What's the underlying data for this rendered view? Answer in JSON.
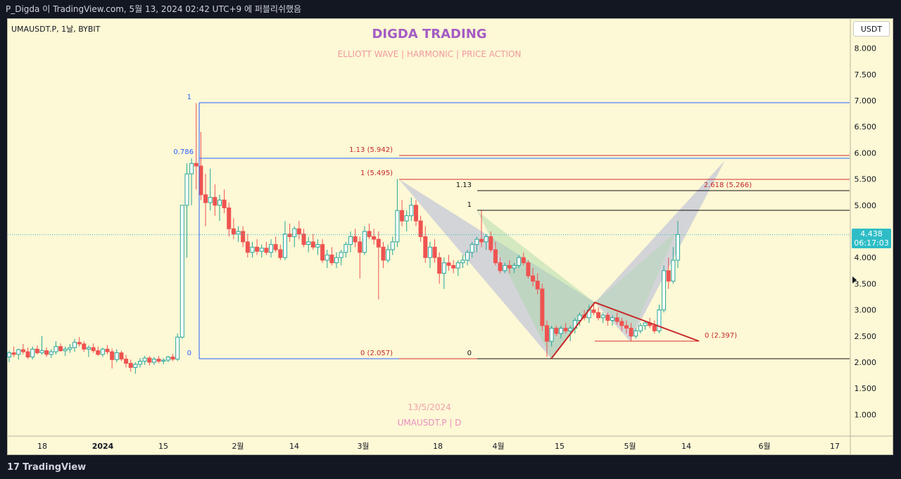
{
  "header_text": "P_Digda 이 TradingView.com, 5월 13, 2024 02:42 UTC+9 에 퍼블리쉬했음",
  "ticker": "UMAUSDT.P, 1날, BYBIT",
  "currency_button": "USDT",
  "title": "DIGDA TRADING",
  "subtitle": "ELLIOTT WAVE   |   HARMONIC   |   PRICE ACTION",
  "watermark_date": "13/5/2024",
  "watermark_symbol": "UMAUSDT.P | D",
  "current_price": "4.438",
  "countdown": "06:17:03",
  "brand": "TradingView",
  "colors": {
    "up": "#26a69a",
    "down": "#ef5350",
    "fib_blue": "#2962ff",
    "fib_red": "#d32f2f",
    "pattern_blue": "#9fa8da",
    "pattern_green": "#a5d6a7",
    "background": "#fdf8d5"
  },
  "chart_data": {
    "type": "candlestick",
    "x_tick_labels": [
      "18",
      "2024",
      "15",
      "2월",
      "14",
      "3월",
      "18",
      "4월",
      "15",
      "5월",
      "14",
      "6월",
      "17"
    ],
    "y_tick_labels": [
      "1.000",
      "1.500",
      "2.000",
      "2.500",
      "3.000",
      "3.500",
      "4.000",
      "4.500",
      "5.000",
      "5.500",
      "6.000",
      "6.500",
      "7.000",
      "7.500",
      "8.000"
    ],
    "ylim": [
      0.5,
      8.6
    ],
    "last_price": 4.438,
    "fib_levels": [
      {
        "label": "1",
        "value": 6.95,
        "color": "blue"
      },
      {
        "label": "0.786",
        "value": 5.89,
        "color": "blue"
      },
      {
        "label": "0",
        "value": 2.057,
        "color": "blue"
      },
      {
        "label": "1.13 (5.942)",
        "value": 5.942,
        "color": "red"
      },
      {
        "label": "1 (5.495)",
        "value": 5.495,
        "color": "red"
      },
      {
        "label": "0 (2.057)",
        "value": 2.057,
        "color": "red"
      },
      {
        "label": "1.13",
        "value": 5.27,
        "color": "black"
      },
      {
        "label": "1",
        "value": 4.9,
        "color": "black"
      },
      {
        "label": "0",
        "value": 2.05,
        "color": "black"
      },
      {
        "label": "2.618 (5.266)",
        "value": 5.266,
        "color": "red"
      },
      {
        "label": "0 (2.397)",
        "value": 2.397,
        "color": "red"
      }
    ],
    "candles_ohlc": [
      [
        2.1,
        2.22,
        2.0,
        2.18
      ],
      [
        2.18,
        2.3,
        2.1,
        2.15
      ],
      [
        2.15,
        2.26,
        2.05,
        2.24
      ],
      [
        2.24,
        2.35,
        2.15,
        2.2
      ],
      [
        2.2,
        2.28,
        2.06,
        2.1
      ],
      [
        2.1,
        2.3,
        2.05,
        2.25
      ],
      [
        2.25,
        2.32,
        2.15,
        2.18
      ],
      [
        2.18,
        2.5,
        2.15,
        2.22
      ],
      [
        2.22,
        2.28,
        2.1,
        2.15
      ],
      [
        2.15,
        2.25,
        2.08,
        2.2
      ],
      [
        2.2,
        2.4,
        2.15,
        2.3
      ],
      [
        2.3,
        2.36,
        2.2,
        2.22
      ],
      [
        2.22,
        2.3,
        2.12,
        2.25
      ],
      [
        2.25,
        2.35,
        2.18,
        2.28
      ],
      [
        2.28,
        2.45,
        2.2,
        2.38
      ],
      [
        2.38,
        2.48,
        2.3,
        2.35
      ],
      [
        2.35,
        2.4,
        2.2,
        2.25
      ],
      [
        2.25,
        2.32,
        2.1,
        2.28
      ],
      [
        2.28,
        2.36,
        2.18,
        2.22
      ],
      [
        2.22,
        2.3,
        2.12,
        2.15
      ],
      [
        2.15,
        2.28,
        2.1,
        2.25
      ],
      [
        2.25,
        2.33,
        2.15,
        2.2
      ],
      [
        2.2,
        2.26,
        1.88,
        2.05
      ],
      [
        2.05,
        2.25,
        2.0,
        2.18
      ],
      [
        2.18,
        2.22,
        2.02,
        2.06
      ],
      [
        2.06,
        2.14,
        1.9,
        1.98
      ],
      [
        1.98,
        2.05,
        1.82,
        1.9
      ],
      [
        1.9,
        2.0,
        1.78,
        1.96
      ],
      [
        1.96,
        2.08,
        1.9,
        2.02
      ],
      [
        2.02,
        2.12,
        1.95,
        2.08
      ],
      [
        2.08,
        2.12,
        1.94,
        2.0
      ],
      [
        2.0,
        2.1,
        1.95,
        2.06
      ],
      [
        2.06,
        2.12,
        1.98,
        2.02
      ],
      [
        2.02,
        2.08,
        1.96,
        2.04
      ],
      [
        2.04,
        2.12,
        2.0,
        2.1
      ],
      [
        2.1,
        2.16,
        2.02,
        2.06
      ],
      [
        2.06,
        2.55,
        2.02,
        2.48
      ],
      [
        2.48,
        5.0,
        2.45,
        5.0
      ],
      [
        5.0,
        5.8,
        4.0,
        5.6
      ],
      [
        5.6,
        5.9,
        5.0,
        5.8
      ],
      [
        5.8,
        6.95,
        5.3,
        5.75
      ],
      [
        5.75,
        6.4,
        5.1,
        5.2
      ],
      [
        5.2,
        5.6,
        4.6,
        5.05
      ],
      [
        5.05,
        5.7,
        4.9,
        5.15
      ],
      [
        5.15,
        5.4,
        4.8,
        5.0
      ],
      [
        5.0,
        5.2,
        4.7,
        5.1
      ],
      [
        5.1,
        5.3,
        4.85,
        4.95
      ],
      [
        4.95,
        5.05,
        4.4,
        4.55
      ],
      [
        4.55,
        4.75,
        4.35,
        4.45
      ],
      [
        4.45,
        4.6,
        4.3,
        4.5
      ],
      [
        4.5,
        4.6,
        4.2,
        4.3
      ],
      [
        4.3,
        4.45,
        4.0,
        4.1
      ],
      [
        4.1,
        4.3,
        4.0,
        4.2
      ],
      [
        4.2,
        4.35,
        4.05,
        4.12
      ],
      [
        4.12,
        4.25,
        4.0,
        4.18
      ],
      [
        4.18,
        4.3,
        4.05,
        4.1
      ],
      [
        4.1,
        4.35,
        4.0,
        4.25
      ],
      [
        4.25,
        4.4,
        4.1,
        4.15
      ],
      [
        4.15,
        4.25,
        3.95,
        4.0
      ],
      [
        4.0,
        4.7,
        3.95,
        4.45
      ],
      [
        4.45,
        4.65,
        4.3,
        4.4
      ],
      [
        4.4,
        4.6,
        4.2,
        4.55
      ],
      [
        4.55,
        4.7,
        4.35,
        4.45
      ],
      [
        4.45,
        4.55,
        4.2,
        4.25
      ],
      [
        4.25,
        4.4,
        4.1,
        4.3
      ],
      [
        4.3,
        4.45,
        4.15,
        4.2
      ],
      [
        4.2,
        4.35,
        4.05,
        4.25
      ],
      [
        4.25,
        4.35,
        3.9,
        3.95
      ],
      [
        3.95,
        4.15,
        3.8,
        4.05
      ],
      [
        4.05,
        4.2,
        3.85,
        3.9
      ],
      [
        3.9,
        4.1,
        3.8,
        4.0
      ],
      [
        4.0,
        4.15,
        3.85,
        4.1
      ],
      [
        4.1,
        4.3,
        4.0,
        4.25
      ],
      [
        4.25,
        4.5,
        4.1,
        4.4
      ],
      [
        4.4,
        4.55,
        4.2,
        4.3
      ],
      [
        4.3,
        4.4,
        3.6,
        4.1
      ],
      [
        4.1,
        4.6,
        4.05,
        4.5
      ],
      [
        4.5,
        4.65,
        4.35,
        4.4
      ],
      [
        4.4,
        4.55,
        4.25,
        4.35
      ],
      [
        4.35,
        4.5,
        3.2,
        4.2
      ],
      [
        4.2,
        4.3,
        3.8,
        3.95
      ],
      [
        3.95,
        4.25,
        3.9,
        4.15
      ],
      [
        4.15,
        4.4,
        4.05,
        4.3
      ],
      [
        4.3,
        5.5,
        4.2,
        4.9
      ],
      [
        4.9,
        5.1,
        4.6,
        4.7
      ],
      [
        4.7,
        4.9,
        4.5,
        4.8
      ],
      [
        4.8,
        5.15,
        4.7,
        5.0
      ],
      [
        5.0,
        5.1,
        4.6,
        4.7
      ],
      [
        4.7,
        4.8,
        4.3,
        4.4
      ],
      [
        4.4,
        4.6,
        3.9,
        4.0
      ],
      [
        4.0,
        4.3,
        3.8,
        4.2
      ],
      [
        4.2,
        4.35,
        3.9,
        4.0
      ],
      [
        4.0,
        4.1,
        3.5,
        3.7
      ],
      [
        3.7,
        4.0,
        3.4,
        3.9
      ],
      [
        3.9,
        4.05,
        3.75,
        3.85
      ],
      [
        3.85,
        3.95,
        3.7,
        3.8
      ],
      [
        3.8,
        3.95,
        3.65,
        3.9
      ],
      [
        3.9,
        4.05,
        3.8,
        3.95
      ],
      [
        3.95,
        4.15,
        3.85,
        4.1
      ],
      [
        4.1,
        4.3,
        4.0,
        4.25
      ],
      [
        4.25,
        4.4,
        4.1,
        4.35
      ],
      [
        4.35,
        4.9,
        4.2,
        4.3
      ],
      [
        4.3,
        4.45,
        4.15,
        4.4
      ],
      [
        4.4,
        4.5,
        4.1,
        4.15
      ],
      [
        4.15,
        4.3,
        3.85,
        3.9
      ],
      [
        3.9,
        4.0,
        3.7,
        3.75
      ],
      [
        3.75,
        3.9,
        3.7,
        3.85
      ],
      [
        3.85,
        3.95,
        3.7,
        3.8
      ],
      [
        3.8,
        3.9,
        3.7,
        3.85
      ],
      [
        3.85,
        4.05,
        3.8,
        4.0
      ],
      [
        4.0,
        4.1,
        3.85,
        3.9
      ],
      [
        3.9,
        3.95,
        3.6,
        3.65
      ],
      [
        3.65,
        3.8,
        3.45,
        3.55
      ],
      [
        3.55,
        3.7,
        3.3,
        3.4
      ],
      [
        3.4,
        3.5,
        2.6,
        2.7
      ],
      [
        2.7,
        2.8,
        2.1,
        2.4
      ],
      [
        2.4,
        2.7,
        2.3,
        2.65
      ],
      [
        2.65,
        2.7,
        2.5,
        2.55
      ],
      [
        2.55,
        2.7,
        2.45,
        2.65
      ],
      [
        2.65,
        2.75,
        2.55,
        2.6
      ],
      [
        2.6,
        2.7,
        2.4,
        2.65
      ],
      [
        2.65,
        2.85,
        2.55,
        2.8
      ],
      [
        2.8,
        2.95,
        2.7,
        2.9
      ],
      [
        2.9,
        3.0,
        2.8,
        2.85
      ],
      [
        2.85,
        3.1,
        2.75,
        3.0
      ],
      [
        3.0,
        3.1,
        2.9,
        2.95
      ],
      [
        2.95,
        3.05,
        2.8,
        2.85
      ],
      [
        2.85,
        2.95,
        2.75,
        2.9
      ],
      [
        2.9,
        2.95,
        2.7,
        2.8
      ],
      [
        2.8,
        2.9,
        2.7,
        2.85
      ],
      [
        2.85,
        2.95,
        2.72,
        2.78
      ],
      [
        2.78,
        2.85,
        2.6,
        2.7
      ],
      [
        2.7,
        2.8,
        2.55,
        2.65
      ],
      [
        2.65,
        2.75,
        2.4,
        2.5
      ],
      [
        2.5,
        2.65,
        2.45,
        2.6
      ],
      [
        2.6,
        2.75,
        2.55,
        2.7
      ],
      [
        2.7,
        2.8,
        2.62,
        2.75
      ],
      [
        2.75,
        2.85,
        2.65,
        2.7
      ],
      [
        2.7,
        2.8,
        2.55,
        2.6
      ],
      [
        2.6,
        3.1,
        2.55,
        3.0
      ],
      [
        3.0,
        3.85,
        2.95,
        3.75
      ],
      [
        3.75,
        4.0,
        3.4,
        3.55
      ],
      [
        3.55,
        4.2,
        3.5,
        3.95
      ],
      [
        3.95,
        4.7,
        3.8,
        4.44
      ]
    ]
  }
}
